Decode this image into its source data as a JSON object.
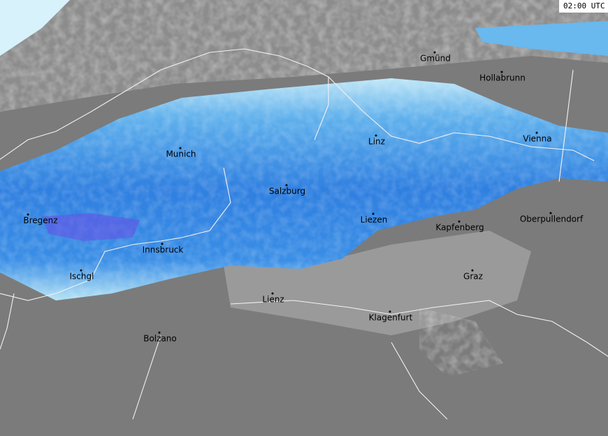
{
  "timestamp": "02:00 UTC",
  "cities": [
    {
      "label": "Gmünd"
    },
    {
      "label": "Hollabrunn"
    },
    {
      "label": "Linz"
    },
    {
      "label": "Vienna"
    },
    {
      "label": "Munich"
    },
    {
      "label": "Salzburg"
    },
    {
      "label": "Bregenz"
    },
    {
      "label": "Liezen"
    },
    {
      "label": "Kapfenberg"
    },
    {
      "label": "Oberpullendorf"
    },
    {
      "label": "Innsbruck"
    },
    {
      "label": "Ischgl"
    },
    {
      "label": "Graz"
    },
    {
      "label": "Lienz"
    },
    {
      "label": "Klagenfurt"
    },
    {
      "label": "Bolzano"
    }
  ]
}
